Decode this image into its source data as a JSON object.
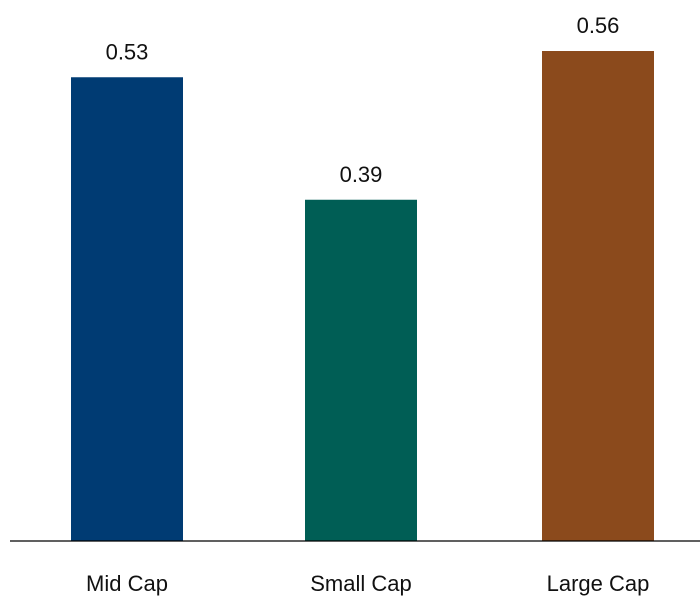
{
  "chart_data": {
    "type": "bar",
    "title": "",
    "xlabel": "",
    "ylabel": "",
    "categories": [
      "Mid Cap",
      "Small Cap",
      "Large Cap"
    ],
    "values": [
      0.53,
      0.39,
      0.56
    ],
    "value_labels": [
      "0.53",
      "0.39",
      "0.56"
    ],
    "colors": [
      "#003b73",
      "#005e55",
      "#8b4a1c"
    ],
    "ylim": [
      0,
      0.56
    ],
    "grid": false,
    "legend": "none"
  }
}
